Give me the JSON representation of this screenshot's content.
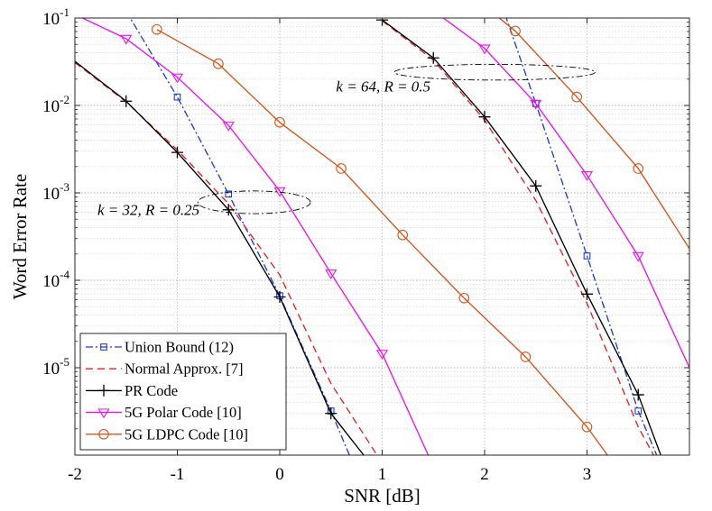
{
  "chart_data": {
    "type": "line",
    "x_scale": "linear",
    "y_scale": "log",
    "xlabel": "SNR [dB]",
    "ylabel": "Word Error Rate",
    "xlim": [
      -2,
      4
    ],
    "ylim": [
      1e-06,
      0.1
    ],
    "grid": true,
    "legend_position": "bottom-left",
    "x_ticks": [
      {
        "value": -2,
        "label": "-2"
      },
      {
        "value": -1,
        "label": "-1"
      },
      {
        "value": 0,
        "label": "0"
      },
      {
        "value": 1,
        "label": "1"
      },
      {
        "value": 2,
        "label": "2"
      },
      {
        "value": 3,
        "label": "3"
      }
    ],
    "y_ticks": [
      {
        "value": 0.1,
        "base": "10",
        "exp": "-1"
      },
      {
        "value": 0.01,
        "base": "10",
        "exp": "-2"
      },
      {
        "value": 0.001,
        "base": "10",
        "exp": "-3"
      },
      {
        "value": 0.0001,
        "base": "10",
        "exp": "-4"
      },
      {
        "value": 1e-05,
        "base": "10",
        "exp": "-5"
      }
    ],
    "series": [
      {
        "name": "Union Bound (12)",
        "color": "#1f3bd6",
        "dash": "8,3,2,3",
        "marker": "square",
        "points": [
          [
            -1.5,
            0.12
          ],
          [
            -1.0,
            0.0125
          ],
          [
            -0.5,
            0.00097
          ],
          [
            0.0,
            6.65e-05
          ],
          [
            0.5,
            3.2e-06
          ],
          [
            0.68,
            1e-06
          ]
        ],
        "marker_points": [
          [
            -1.0,
            0.0125
          ],
          [
            -0.5,
            0.00097
          ],
          [
            0.0,
            6.65e-05
          ],
          [
            0.5,
            3.2e-06
          ]
        ]
      },
      {
        "name": "Normal Approx. [7]",
        "color": "#e52020",
        "dash": "8,5",
        "marker": "none",
        "points": [
          [
            -2.0,
            0.031
          ],
          [
            -1.5,
            0.011
          ],
          [
            -1.0,
            0.0031
          ],
          [
            -0.5,
            0.00075
          ],
          [
            0.0,
            0.000115
          ],
          [
            0.5,
            6.6e-06
          ],
          [
            0.95,
            1e-06
          ]
        ],
        "marker_points": []
      },
      {
        "name": "PR Code",
        "color": "#000000",
        "dash": "",
        "marker": "plus",
        "points": [
          [
            -2.0,
            0.032
          ],
          [
            -1.5,
            0.0112
          ],
          [
            -1.0,
            0.0029
          ],
          [
            -0.5,
            0.00064
          ],
          [
            0.0,
            6.45e-05
          ],
          [
            0.5,
            3e-06
          ],
          [
            0.82,
            1e-06
          ]
        ],
        "marker_points": [
          [
            -1.5,
            0.0112
          ],
          [
            -1.0,
            0.0029
          ],
          [
            -0.5,
            0.00064
          ],
          [
            0.0,
            6.45e-05
          ],
          [
            0.5,
            3e-06
          ]
        ]
      },
      {
        "name": "5G Polar Code [10]",
        "color": "#ee10ee",
        "dash": "",
        "marker": "triangle-down",
        "points": [
          [
            -2.0,
            0.11
          ],
          [
            -1.5,
            0.058
          ],
          [
            -1.0,
            0.021
          ],
          [
            -0.5,
            0.0059
          ],
          [
            0.0,
            0.00105
          ],
          [
            0.5,
            0.00012
          ],
          [
            1.0,
            1.45e-05
          ],
          [
            1.45,
            1e-06
          ]
        ],
        "marker_points": [
          [
            -1.5,
            0.058
          ],
          [
            -1.0,
            0.021
          ],
          [
            -0.5,
            0.0059
          ],
          [
            0.0,
            0.00105
          ],
          [
            0.5,
            0.00012
          ],
          [
            1.0,
            1.45e-05
          ]
        ]
      },
      {
        "name": "5G LDPC Code [10]",
        "color": "#d95319",
        "dash": "",
        "marker": "circle",
        "points": [
          [
            -1.2,
            0.074
          ],
          [
            -0.6,
            0.03
          ],
          [
            0.0,
            0.0064
          ],
          [
            0.6,
            0.0019
          ],
          [
            1.2,
            0.00033
          ],
          [
            1.8,
            6.25e-05
          ],
          [
            2.4,
            1.33e-05
          ],
          [
            3.0,
            2.1e-06
          ],
          [
            3.2,
            1e-06
          ]
        ],
        "marker_points": [
          [
            -1.2,
            0.074
          ],
          [
            -0.6,
            0.03
          ],
          [
            0.0,
            0.0064
          ],
          [
            0.6,
            0.0019
          ],
          [
            1.2,
            0.00033
          ],
          [
            1.8,
            6.25e-05
          ],
          [
            2.4,
            1.33e-05
          ],
          [
            3.0,
            2.1e-06
          ]
        ]
      },
      {
        "name": "Union Bound (12) k=64",
        "color": "#1f3bd6",
        "dash": "8,3,2,3",
        "marker": "square",
        "points": [
          [
            2.2,
            0.11
          ],
          [
            2.5,
            0.0105
          ],
          [
            3.0,
            0.00019
          ],
          [
            3.5,
            3.2e-06
          ],
          [
            3.68,
            1e-06
          ]
        ],
        "marker_points": [
          [
            2.5,
            0.0105
          ],
          [
            3.0,
            0.00019
          ],
          [
            3.5,
            3.2e-06
          ]
        ]
      },
      {
        "name": "Normal Approx. [7] k=64",
        "color": "#e52020",
        "dash": "8,5",
        "marker": "none",
        "points": [
          [
            1.0,
            0.093
          ],
          [
            1.5,
            0.033
          ],
          [
            2.0,
            0.0068
          ],
          [
            2.5,
            0.00082
          ],
          [
            3.0,
            5.45e-05
          ],
          [
            3.5,
            2.1e-06
          ],
          [
            3.65,
            1e-06
          ]
        ],
        "marker_points": []
      },
      {
        "name": "PR Code k=64",
        "color": "#000000",
        "dash": "",
        "marker": "plus",
        "points": [
          [
            1.0,
            0.095
          ],
          [
            1.5,
            0.035
          ],
          [
            2.0,
            0.0074
          ],
          [
            2.5,
            0.0012
          ],
          [
            3.0,
            6.95e-05
          ],
          [
            3.5,
            4.9e-06
          ],
          [
            3.72,
            1e-06
          ]
        ],
        "marker_points": [
          [
            1.0,
            0.095
          ],
          [
            1.5,
            0.035
          ],
          [
            2.0,
            0.0074
          ],
          [
            2.5,
            0.0012
          ],
          [
            3.0,
            6.95e-05
          ],
          [
            3.5,
            4.9e-06
          ]
        ]
      },
      {
        "name": "5G Polar Code [10] k=64",
        "color": "#ee10ee",
        "dash": "",
        "marker": "triangle-down",
        "points": [
          [
            1.55,
            0.11
          ],
          [
            2.0,
            0.045
          ],
          [
            2.5,
            0.0105
          ],
          [
            3.0,
            0.0016
          ],
          [
            3.5,
            0.00019
          ],
          [
            4.0,
            1e-05
          ]
        ],
        "marker_points": [
          [
            2.0,
            0.045
          ],
          [
            2.5,
            0.0105
          ],
          [
            3.0,
            0.0016
          ],
          [
            3.5,
            0.00019
          ]
        ]
      },
      {
        "name": "5G LDPC Code [10] k=64",
        "color": "#d95319",
        "dash": "",
        "marker": "circle",
        "points": [
          [
            2.1,
            0.11
          ],
          [
            2.3,
            0.071
          ],
          [
            2.9,
            0.0125
          ],
          [
            3.5,
            0.0019
          ],
          [
            4.0,
            0.00023
          ]
        ],
        "marker_points": [
          [
            2.3,
            0.071
          ],
          [
            2.9,
            0.0125
          ],
          [
            3.5,
            0.0019
          ]
        ]
      }
    ],
    "legend": [
      {
        "label": "Union Bound (12)",
        "series": 0
      },
      {
        "label": "Normal Approx. [7]",
        "series": 1
      },
      {
        "label": "PR Code",
        "series": 2
      },
      {
        "label": "5G Polar Code [10]",
        "series": 3
      },
      {
        "label": "5G LDPC Code [10]",
        "series": 4
      }
    ],
    "annotations": [
      {
        "name": "k32",
        "text": "k = 32, R = 0.25",
        "text_x": -1.78,
        "text_y": 0.00056,
        "ellipse_cx": -0.25,
        "ellipse_cy": 0.00078,
        "ellipse_rx_dB": 0.55,
        "ellipse_ry_dec": 0.13
      },
      {
        "name": "k64",
        "text": "k = 64, R = 0.5",
        "text_x": 0.55,
        "text_y": 0.0145,
        "ellipse_cx": 2.1,
        "ellipse_cy": 0.024,
        "ellipse_rx_dB": 0.98,
        "ellipse_ry_dec": 0.09
      }
    ]
  }
}
